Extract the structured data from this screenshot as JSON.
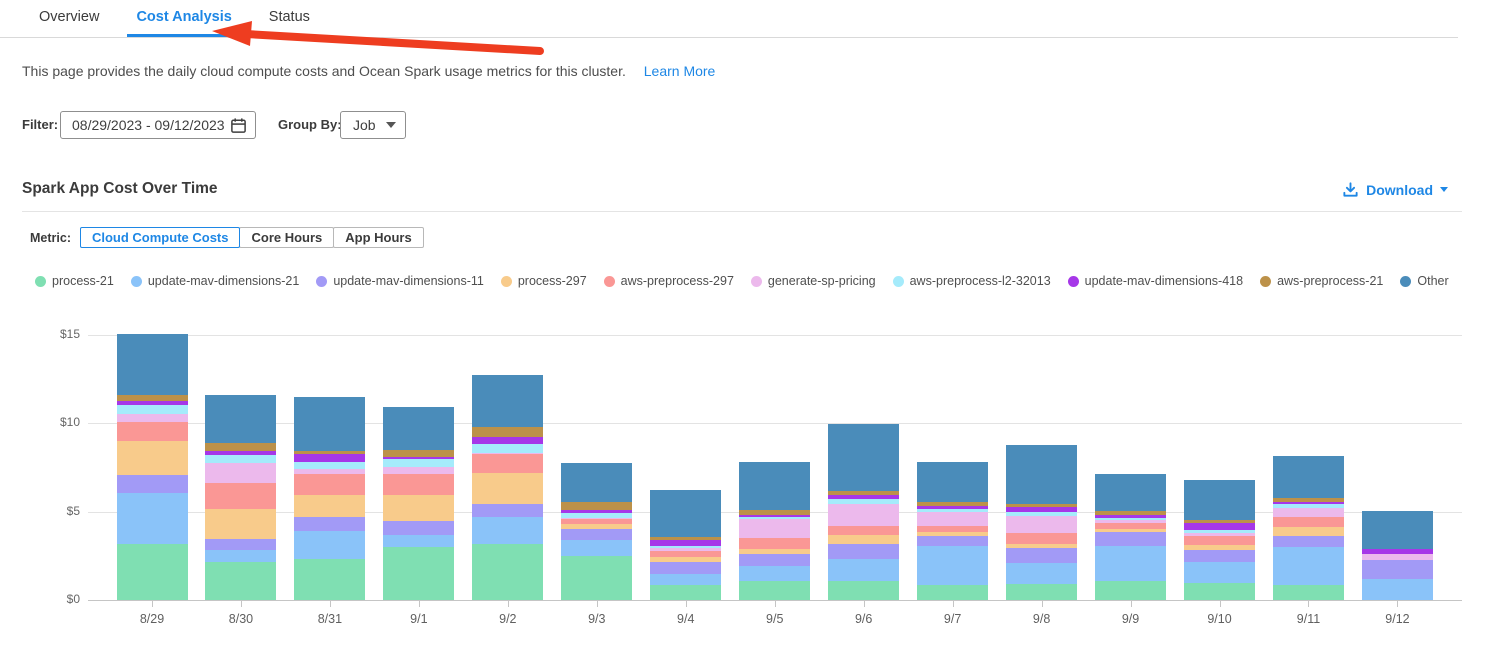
{
  "tabs": [
    {
      "label": "Overview",
      "active": false
    },
    {
      "label": "Cost Analysis",
      "active": true
    },
    {
      "label": "Status",
      "active": false
    }
  ],
  "annotation": {
    "type": "arrow",
    "points_at": "Cost Analysis tab",
    "color": "#ee3d20"
  },
  "description": {
    "text": "This page provides the daily cloud compute costs and Ocean Spark usage metrics for this cluster.",
    "link_label": "Learn More"
  },
  "filter": {
    "label": "Filter:",
    "date_range": "08/29/2023  -  09/12/2023",
    "group_by_label": "Group By:",
    "group_by_value": "Job"
  },
  "section": {
    "title": "Spark App Cost Over Time",
    "download_label": "Download"
  },
  "metric": {
    "label": "Metric:",
    "options": [
      "Cloud Compute Costs",
      "Core Hours",
      "App Hours"
    ],
    "selected": "Cloud Compute Costs"
  },
  "colors": {
    "accent_blue": "#1e87e5",
    "arrow_red": "#ee3d20"
  },
  "chart_data": {
    "type": "bar",
    "stacked": true,
    "title": "Spark App Cost Over Time",
    "xlabel": "",
    "ylabel": "",
    "ylim": [
      0,
      15
    ],
    "ytick_values": [
      0,
      5,
      10,
      15
    ],
    "ytick_labels": [
      "$0",
      "$5",
      "$10",
      "$15"
    ],
    "grid": true,
    "legend_position": "top",
    "categories": [
      "8/29",
      "8/30",
      "8/31",
      "9/1",
      "9/2",
      "9/3",
      "9/4",
      "9/5",
      "9/6",
      "9/7",
      "9/8",
      "9/9",
      "9/10",
      "9/11",
      "9/12"
    ],
    "series": [
      {
        "name": "process-21",
        "color": "#7FDFB2",
        "values": [
          3.17,
          2.17,
          2.33,
          2.98,
          3.18,
          2.47,
          0.85,
          1.09,
          1.09,
          0.83,
          0.91,
          1.05,
          0.98,
          0.85,
          0.0
        ]
      },
      {
        "name": "update-mav-dimensions-21",
        "color": "#8AC3F9",
        "values": [
          2.88,
          0.66,
          1.6,
          0.68,
          1.51,
          0.91,
          0.65,
          0.82,
          1.24,
          2.21,
          1.19,
          2.03,
          1.19,
          2.17,
          1.19
        ]
      },
      {
        "name": "update-mav-dimensions-11",
        "color": "#A29AF6",
        "values": [
          1.0,
          0.62,
          0.75,
          0.84,
          0.76,
          0.65,
          0.65,
          0.72,
          0.86,
          0.57,
          0.85,
          0.75,
          0.67,
          0.63,
          1.08
        ]
      },
      {
        "name": "process-297",
        "color": "#F8CB8B",
        "values": [
          1.96,
          1.73,
          1.29,
          1.47,
          1.75,
          0.3,
          0.3,
          0.28,
          0.51,
          0.22,
          0.23,
          0.2,
          0.28,
          0.47,
          0.0
        ]
      },
      {
        "name": "aws-preprocess-297",
        "color": "#FA9795",
        "values": [
          1.06,
          1.42,
          1.19,
          1.19,
          1.04,
          0.23,
          0.3,
          0.61,
          0.47,
          0.38,
          0.62,
          0.34,
          0.53,
          0.6,
          0.0
        ]
      },
      {
        "name": "generate-sp-pricing",
        "color": "#ECB9EC",
        "values": [
          0.45,
          1.15,
          0.23,
          0.36,
          0.1,
          0.1,
          0.2,
          1.04,
          1.28,
          0.76,
          0.94,
          0.14,
          0.13,
          0.47,
          0.34
        ]
      },
      {
        "name": "aws-preprocess-l2-32013",
        "color": "#A5EBFB",
        "values": [
          0.53,
          0.47,
          0.44,
          0.44,
          0.51,
          0.25,
          0.1,
          0.15,
          0.24,
          0.19,
          0.23,
          0.14,
          0.19,
          0.25,
          0.0
        ]
      },
      {
        "name": "update-mav-dimensions-418",
        "color": "#A637E8",
        "values": [
          0.22,
          0.23,
          0.41,
          0.15,
          0.4,
          0.2,
          0.35,
          0.13,
          0.24,
          0.15,
          0.28,
          0.19,
          0.4,
          0.13,
          0.28
        ]
      },
      {
        "name": "aws-preprocess-21",
        "color": "#BC9149",
        "values": [
          0.34,
          0.41,
          0.19,
          0.36,
          0.57,
          0.45,
          0.15,
          0.23,
          0.23,
          0.23,
          0.21,
          0.22,
          0.18,
          0.19,
          0.0
        ]
      },
      {
        "name": "Other",
        "color": "#4A8CBA",
        "values": [
          3.46,
          2.73,
          3.08,
          2.48,
          2.92,
          2.17,
          2.65,
          2.73,
          3.82,
          2.26,
          3.31,
          2.05,
          2.27,
          2.42,
          2.17
        ]
      }
    ],
    "totals": [
      15.07,
      11.59,
      11.51,
      10.95,
      12.74,
      7.73,
      6.2,
      7.8,
      9.98,
      7.8,
      8.77,
      7.11,
      6.82,
      8.18,
      5.06
    ]
  }
}
